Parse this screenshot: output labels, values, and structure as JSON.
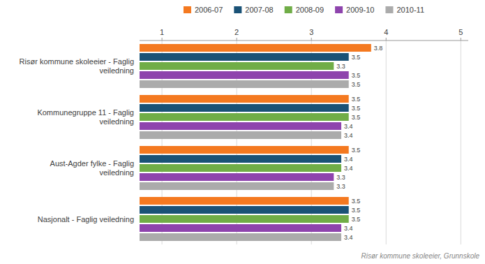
{
  "chart_data": {
    "type": "bar",
    "orientation": "horizontal",
    "subtitle": "Risør kommune skoleeier, Grunnskole",
    "categories": [
      "Risør kommune skoleeier - Faglig\nveiledning",
      "Kommunegruppe 11 - Faglig\nveiledning",
      "Aust-Agder fylke - Faglig\nveiledning",
      "Nasjonalt - Faglig veiledning"
    ],
    "series": [
      {
        "name": "2006-07",
        "color": "#f47920",
        "values": [
          3.8,
          3.5,
          3.5,
          3.5
        ]
      },
      {
        "name": "2007-08",
        "color": "#1a5276",
        "values": [
          3.5,
          3.5,
          3.4,
          3.5
        ]
      },
      {
        "name": "2008-09",
        "color": "#70ad47",
        "values": [
          3.3,
          3.5,
          3.4,
          3.5
        ]
      },
      {
        "name": "2009-10",
        "color": "#8e44ad",
        "values": [
          3.5,
          3.4,
          3.3,
          3.4
        ]
      },
      {
        "name": "2010-11",
        "color": "#ababab",
        "values": [
          3.5,
          3.4,
          3.3,
          3.4
        ]
      }
    ],
    "xlim": [
      0.7,
      5.1
    ],
    "xticks": [
      1,
      2,
      3,
      4,
      5
    ],
    "grid": true,
    "legend": "top",
    "data_labels": true
  }
}
